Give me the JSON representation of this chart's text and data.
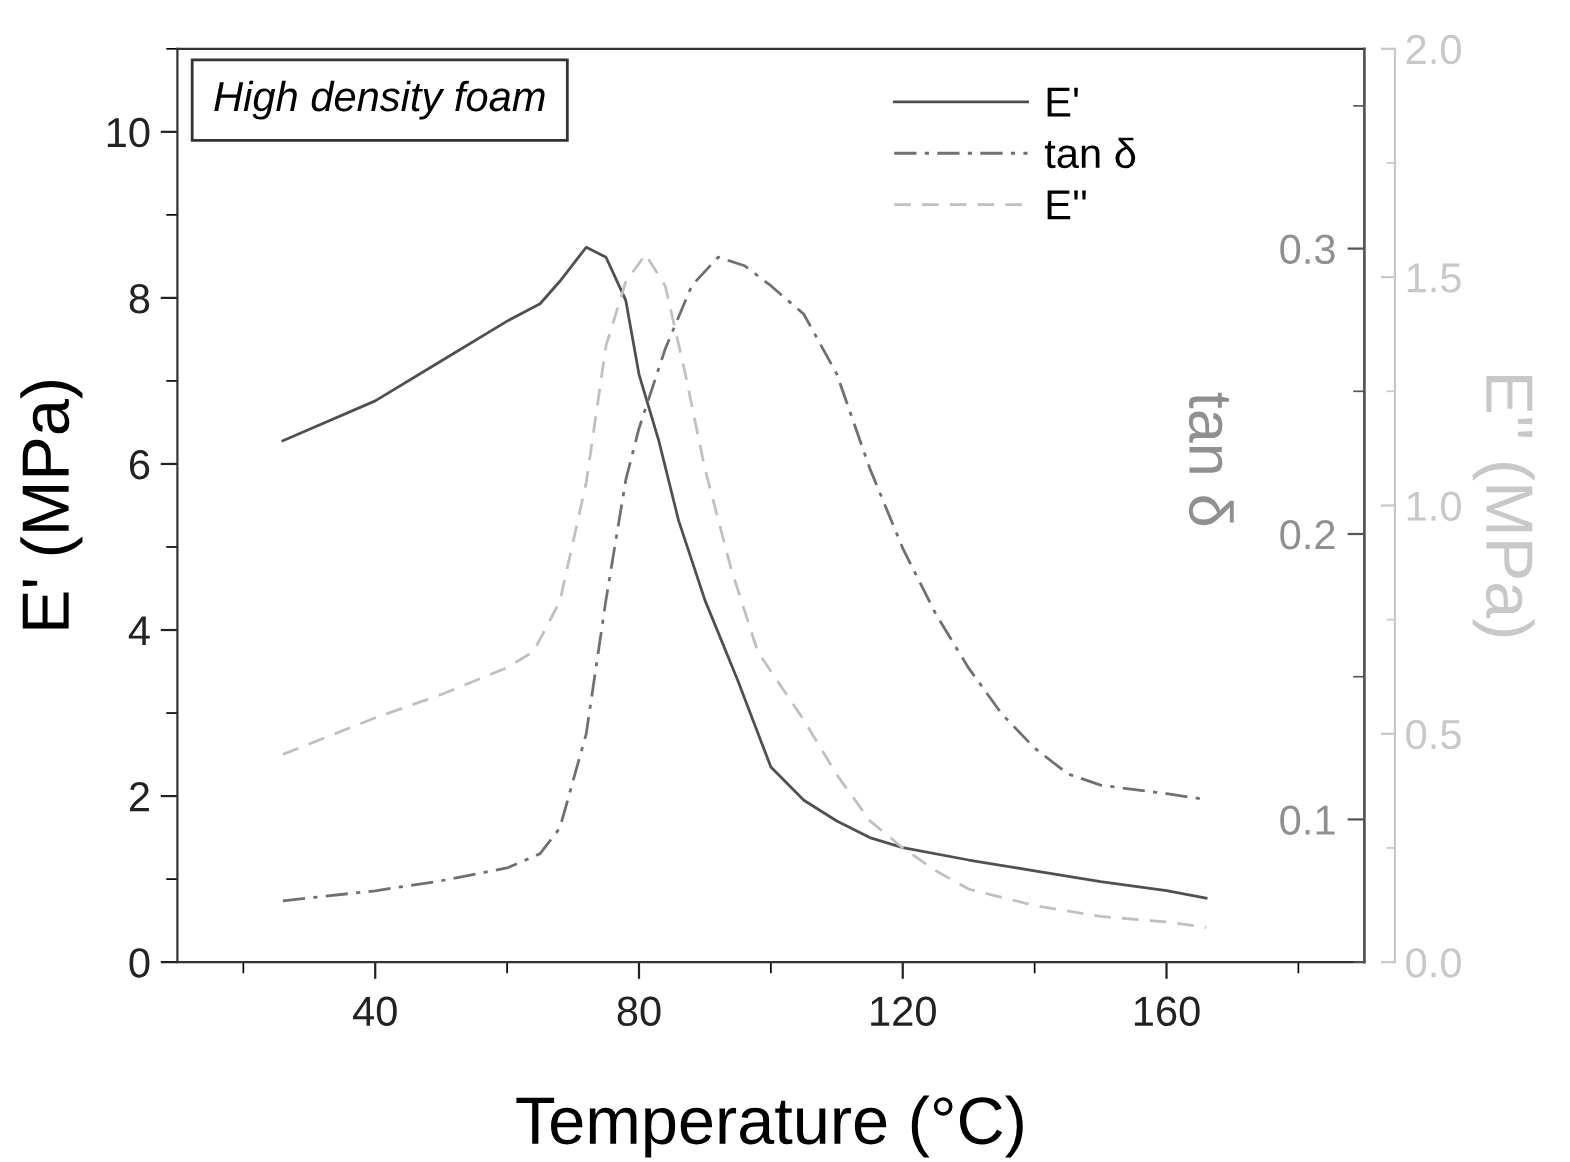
{
  "chart_data": {
    "type": "line",
    "xlabel": "Temperature (°C)",
    "ylabel": "E' (MPa)",
    "y2label": "tan δ",
    "y3label": "E'' (MPa)",
    "annotations": [
      "High density foam"
    ],
    "xlim": [
      10,
      190
    ],
    "xticks": [
      40,
      80,
      120,
      160
    ],
    "ylim": [
      0,
      11
    ],
    "yticks": [
      0,
      2,
      4,
      6,
      8,
      10
    ],
    "y2lim": [
      0.05,
      0.37
    ],
    "y2ticks": [
      0.1,
      0.2,
      0.3
    ],
    "y3lim": [
      0,
      2
    ],
    "y3ticks": [
      {
        "value": 0,
        "label": "0.0"
      },
      0.5,
      {
        "value": 1,
        "label": "1.0"
      },
      1.5,
      {
        "value": 2,
        "label": "2.0"
      }
    ],
    "grid": false,
    "legend": "top right",
    "series": [
      {
        "name": "E'",
        "color": "#505050",
        "line_style": "solid",
        "x": [
          26,
          40,
          50,
          60,
          65,
          68,
          72,
          75,
          78,
          80,
          83,
          86,
          90,
          95,
          100,
          105,
          110,
          115,
          120,
          130,
          140,
          150,
          160,
          166
        ],
        "values": [
          6.28,
          6.76,
          7.24,
          7.72,
          7.93,
          8.2,
          8.61,
          8.49,
          7.97,
          7.08,
          6.28,
          5.32,
          4.36,
          3.39,
          2.35,
          1.95,
          1.7,
          1.5,
          1.38,
          1.23,
          1.1,
          0.97,
          0.86,
          0.77
        ]
      },
      {
        "name": "tan δ",
        "color": "#707070",
        "line_style": "dashdot",
        "axis": "y2",
        "x": [
          26,
          40,
          50,
          60,
          65,
          68,
          72,
          75,
          78,
          80,
          84,
          88,
          92,
          96,
          100,
          105,
          110,
          115,
          120,
          125,
          130,
          135,
          140,
          145,
          150,
          160,
          166
        ],
        "values": [
          0.0715,
          0.075,
          0.0785,
          0.083,
          0.088,
          0.097,
          0.13,
          0.177,
          0.219,
          0.237,
          0.265,
          0.287,
          0.297,
          0.294,
          0.287,
          0.277,
          0.256,
          0.223,
          0.195,
          0.172,
          0.153,
          0.137,
          0.125,
          0.116,
          0.112,
          0.109,
          0.107
        ]
      },
      {
        "name": "E''",
        "color": "#c0c0c0",
        "line_style": "dashed",
        "axis": "y3",
        "x": [
          26,
          40,
          50,
          60,
          64,
          68,
          72,
          75,
          78,
          81,
          84,
          87,
          90,
          94,
          98,
          105,
          110,
          115,
          120,
          125,
          130,
          140,
          150,
          160,
          166
        ],
        "values": [
          0.455,
          0.535,
          0.586,
          0.645,
          0.68,
          0.79,
          1.05,
          1.35,
          1.49,
          1.55,
          1.48,
          1.29,
          1.08,
          0.86,
          0.68,
          0.53,
          0.41,
          0.31,
          0.25,
          0.2,
          0.16,
          0.124,
          0.1,
          0.088,
          0.076
        ]
      }
    ]
  }
}
